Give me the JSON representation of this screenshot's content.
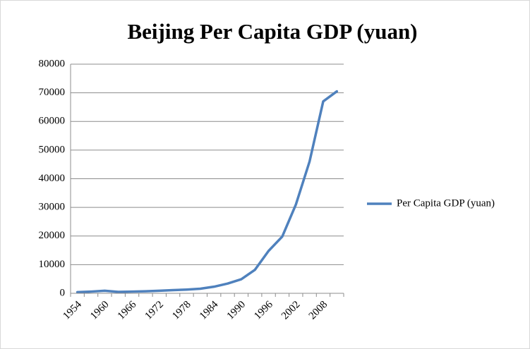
{
  "chart_data": {
    "type": "line",
    "title": "Beijing Per Capita GDP (yuan)",
    "categories": [
      "1954",
      null,
      "1960",
      null,
      "1966",
      null,
      "1972",
      null,
      "1978",
      null,
      "1984",
      null,
      "1990",
      null,
      "1996",
      null,
      "2002",
      null,
      "2008",
      null
    ],
    "series": [
      {
        "name": "Per Capita GDP (yuan)",
        "color": "#4f81bd",
        "values": [
          400,
          600,
          900,
          500,
          600,
          700,
          900,
          1100,
          1300,
          1600,
          2300,
          3400,
          4900,
          8200,
          14800,
          19800,
          31000,
          46000,
          67000,
          70500
        ]
      }
    ],
    "ylim": [
      0,
      80000
    ],
    "yticks": [
      0,
      10000,
      20000,
      30000,
      40000,
      50000,
      60000,
      70000,
      80000
    ],
    "grid": true,
    "legend": "right"
  }
}
